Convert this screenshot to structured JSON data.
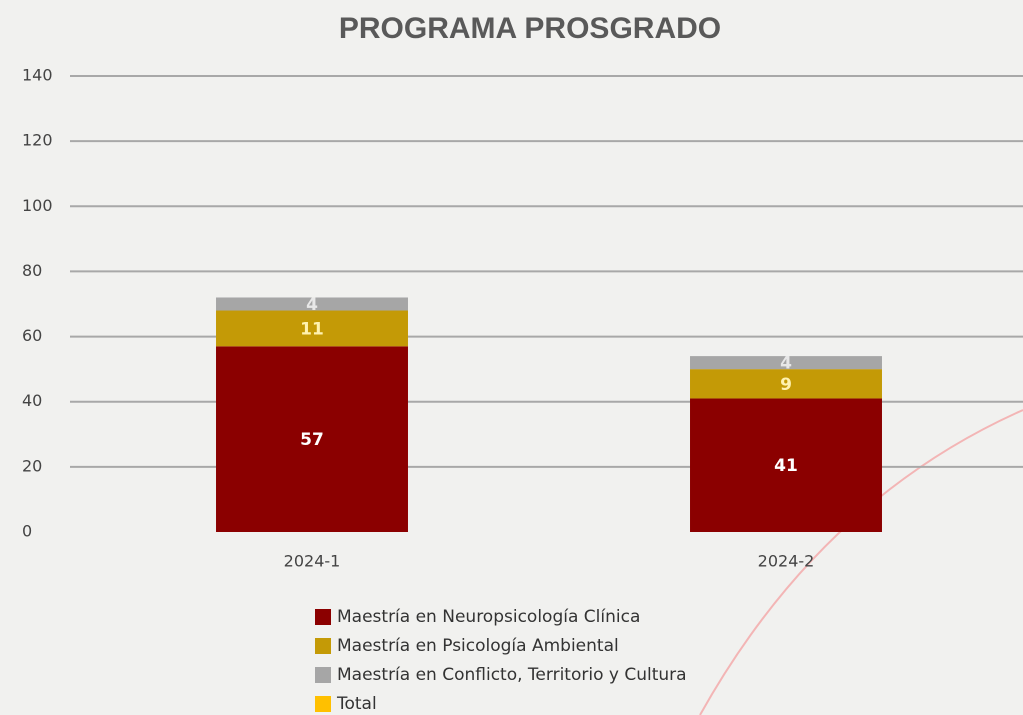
{
  "chart_data": {
    "type": "stacked_bar",
    "title": "PROGRAMA PROSGRADO",
    "categories": [
      "2024-1",
      "2024-2"
    ],
    "series": [
      {
        "name": "Maestría en Neuropsicología Clínica",
        "color": "#8b0000",
        "label_color": "#ffffff",
        "values": [
          57,
          41
        ]
      },
      {
        "name": "Maestría en Psicología Ambiental",
        "color": "#c49a06",
        "label_color": "#fff2b0",
        "values": [
          11,
          9
        ]
      },
      {
        "name": "Maestría en Conflicto, Territorio y Cultura",
        "color": "#a6a6a6",
        "label_color": "#e8e8e8",
        "values": [
          4,
          4
        ]
      },
      {
        "name": "Total",
        "color": "#ffc000",
        "values": [
          null,
          null
        ]
      }
    ],
    "ylim": [
      0,
      140
    ],
    "yticks": [
      0,
      20,
      40,
      60,
      80,
      100,
      120,
      140
    ],
    "grid": true,
    "legend": "bottom"
  }
}
